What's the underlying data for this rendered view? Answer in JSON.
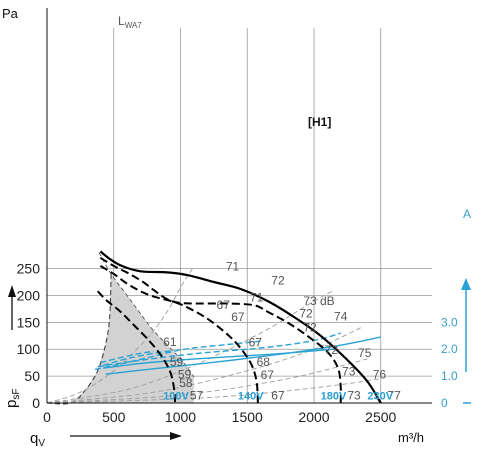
{
  "chart_data": {
    "type": "line",
    "y_unit_label": "Pa",
    "y_axis_name": "p",
    "y_axis_subscript": "sF",
    "x_axis_name": "q",
    "x_axis_subscript": "V",
    "x_unit": "m³/h",
    "xlim": [
      0,
      2900
    ],
    "ylim": [
      0,
      275
    ],
    "x_ticks": [
      0,
      500,
      1000,
      1500,
      2000,
      2500
    ],
    "y_ticks": [
      0,
      50,
      100,
      150,
      200,
      250
    ],
    "current_axis": {
      "unit": "A",
      "ticks": [
        {
          "label": "0",
          "value": 0
        },
        {
          "label": "1.0",
          "value": 1
        },
        {
          "label": "2.0",
          "value": 2
        },
        {
          "label": "3.0",
          "value": 3
        }
      ],
      "pa_per_amp": 50
    },
    "series_header_main": "L",
    "series_header_sub": "WA7",
    "curve_tag": "[H1]",
    "grid": true,
    "shaded_region": {
      "upper": [
        [
          390,
          280
        ],
        [
          480,
          240
        ],
        [
          600,
          200
        ],
        [
          780,
          140
        ],
        [
          900,
          108
        ],
        [
          1000,
          82
        ],
        [
          1070,
          60
        ],
        [
          1100,
          48
        ]
      ],
      "lower": [
        [
          480,
          240
        ],
        [
          470,
          160
        ],
        [
          440,
          110
        ],
        [
          380,
          60
        ],
        [
          290,
          25
        ],
        [
          180,
          0
        ],
        [
          0,
          0
        ]
      ]
    },
    "system_curves": [
      {
        "points": [
          [
            0,
            0
          ],
          [
            250,
            20
          ],
          [
            500,
            60
          ],
          [
            750,
            120
          ],
          [
            900,
            170
          ],
          [
            1000,
            215
          ],
          [
            1090,
            250
          ]
        ]
      },
      {
        "points": [
          [
            0,
            0
          ],
          [
            600,
            25
          ],
          [
            1100,
            70
          ],
          [
            1600,
            130
          ],
          [
            1950,
            182
          ],
          [
            2150,
            210
          ]
        ]
      },
      {
        "points": [
          [
            0,
            0
          ],
          [
            800,
            20
          ],
          [
            1500,
            60
          ],
          [
            2000,
            100
          ],
          [
            2350,
            140
          ]
        ]
      },
      {
        "points": [
          [
            0,
            0
          ],
          [
            1000,
            15
          ],
          [
            1800,
            45
          ],
          [
            2400,
            82
          ]
        ]
      },
      {
        "points": [
          [
            0,
            0
          ],
          [
            1200,
            10
          ],
          [
            2000,
            28
          ],
          [
            2500,
            45
          ]
        ]
      }
    ],
    "series": [
      {
        "name": "230V",
        "style": "solid",
        "points": [
          [
            400,
            282
          ],
          [
            470,
            268
          ],
          [
            560,
            255
          ],
          [
            700,
            245
          ],
          [
            900,
            243
          ],
          [
            1050,
            238
          ],
          [
            1250,
            225
          ],
          [
            1450,
            212
          ],
          [
            1650,
            190
          ],
          [
            1850,
            160
          ],
          [
            2050,
            125
          ],
          [
            2250,
            80
          ],
          [
            2400,
            40
          ],
          [
            2500,
            0
          ]
        ]
      },
      {
        "name": "180V",
        "style": "dashed",
        "points": [
          [
            400,
            270
          ],
          [
            500,
            255
          ],
          [
            620,
            240
          ],
          [
            720,
            225
          ],
          [
            800,
            210
          ],
          [
            900,
            193
          ],
          [
            1000,
            186
          ],
          [
            1150,
            185
          ],
          [
            1350,
            185
          ],
          [
            1550,
            182
          ],
          [
            1650,
            170
          ],
          [
            1800,
            150
          ],
          [
            1950,
            125
          ],
          [
            2100,
            95
          ],
          [
            2180,
            65
          ],
          [
            2200,
            30
          ],
          [
            2200,
            0
          ]
        ]
      },
      {
        "name": "140V",
        "style": "dashed",
        "points": [
          [
            400,
            255
          ],
          [
            500,
            240
          ],
          [
            600,
            222
          ],
          [
            700,
            208
          ],
          [
            800,
            198
          ],
          [
            950,
            188
          ],
          [
            1050,
            178
          ],
          [
            1200,
            157
          ],
          [
            1350,
            128
          ],
          [
            1450,
            102
          ],
          [
            1530,
            72
          ],
          [
            1570,
            40
          ],
          [
            1580,
            0
          ]
        ]
      },
      {
        "name": "100V",
        "style": "dashed",
        "points": [
          [
            380,
            208
          ],
          [
            450,
            190
          ],
          [
            550,
            170
          ],
          [
            650,
            145
          ],
          [
            750,
            120
          ],
          [
            850,
            90
          ],
          [
            920,
            60
          ],
          [
            950,
            30
          ],
          [
            960,
            0
          ]
        ]
      }
    ],
    "current_curves": [
      {
        "name": "230V",
        "style": "solid",
        "points": [
          [
            440,
            1.07
          ],
          [
            700,
            1.22
          ],
          [
            1000,
            1.38
          ],
          [
            1400,
            1.6
          ],
          [
            1800,
            1.85
          ],
          [
            2200,
            2.15
          ],
          [
            2500,
            2.45
          ]
        ]
      },
      {
        "name": "180V",
        "style": "solid",
        "points": [
          [
            420,
            1.3
          ],
          [
            700,
            1.47
          ],
          [
            1000,
            1.6
          ],
          [
            1300,
            1.7
          ],
          [
            1700,
            1.82
          ],
          [
            2150,
            2.0
          ]
        ]
      },
      {
        "name": "140V",
        "style": "dashed",
        "points": [
          [
            380,
            1.35
          ],
          [
            600,
            1.52
          ],
          [
            900,
            1.72
          ],
          [
            1200,
            1.88
          ],
          [
            1550,
            2.02
          ],
          [
            1850,
            2.2
          ],
          [
            2050,
            2.38
          ],
          [
            2200,
            2.6
          ]
        ]
      },
      {
        "name": "100V",
        "style": "dashed",
        "points": [
          [
            360,
            1.25
          ],
          [
            550,
            1.45
          ],
          [
            750,
            1.68
          ],
          [
            950,
            1.92
          ],
          [
            1100,
            2.05
          ],
          [
            1300,
            2.15
          ],
          [
            1600,
            2.3
          ]
        ]
      },
      {
        "name": "",
        "style": "dashed",
        "points": [
          [
            420,
            1.4
          ],
          [
            600,
            1.65
          ],
          [
            800,
            1.85
          ],
          [
            950,
            1.95
          ]
        ]
      },
      {
        "name": "",
        "style": "dashed",
        "points": [
          [
            400,
            1.5
          ],
          [
            560,
            1.7
          ],
          [
            700,
            1.85
          ],
          [
            800,
            1.92
          ]
        ]
      }
    ],
    "voltage_labels": [
      {
        "text": "100V",
        "x": 870,
        "y": 3
      },
      {
        "text": "140V",
        "x": 1430,
        "y": 3
      },
      {
        "text": "180V",
        "x": 2050,
        "y": 3
      },
      {
        "text": "230V",
        "x": 2400,
        "y": 3
      }
    ],
    "noise_labels": [
      {
        "text": "71",
        "x": 1340,
        "y": 243
      },
      {
        "text": "72",
        "x": 1680,
        "y": 217
      },
      {
        "text": "71",
        "x": 1520,
        "y": 185
      },
      {
        "text": "73 dB",
        "x": 1920,
        "y": 179
      },
      {
        "text": "67",
        "x": 1270,
        "y": 171
      },
      {
        "text": "72",
        "x": 1890,
        "y": 155
      },
      {
        "text": "74",
        "x": 2150,
        "y": 150
      },
      {
        "text": "67",
        "x": 1380,
        "y": 149
      },
      {
        "text": "72",
        "x": 1920,
        "y": 129
      },
      {
        "text": "61",
        "x": 870,
        "y": 102
      },
      {
        "text": "67",
        "x": 1510,
        "y": 101
      },
      {
        "text": "72",
        "x": 2080,
        "y": 87
      },
      {
        "text": "75",
        "x": 2330,
        "y": 82
      },
      {
        "text": "59",
        "x": 920,
        "y": 65
      },
      {
        "text": "68",
        "x": 1570,
        "y": 65
      },
      {
        "text": "73",
        "x": 2210,
        "y": 47
      },
      {
        "text": "59",
        "x": 980,
        "y": 42
      },
      {
        "text": "67",
        "x": 1600,
        "y": 41
      },
      {
        "text": "76",
        "x": 2440,
        "y": 42
      },
      {
        "text": "58",
        "x": 990,
        "y": 26
      },
      {
        "text": "57",
        "x": 1070,
        "y": 3
      },
      {
        "text": "67",
        "x": 1680,
        "y": 3
      },
      {
        "text": "73",
        "x": 2250,
        "y": 3
      },
      {
        "text": "77",
        "x": 2550,
        "y": 3
      }
    ],
    "colors": {
      "pressure": "#000000",
      "current": "#29a3d3",
      "grid": "#9a9a9a",
      "shade": "#d2d2d2",
      "system": "#9e9e9e"
    }
  }
}
